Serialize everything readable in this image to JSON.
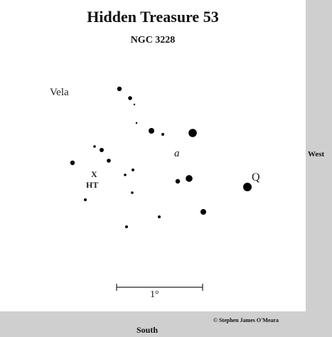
{
  "chart": {
    "title": "Hidden Treasure 53",
    "subtitle": "NGC 3228",
    "constellation": "Vela",
    "star_a_label": "a",
    "star_q_label": "Q",
    "target_marker": "X",
    "target_label": "HT",
    "scale_label": "1°"
  },
  "directions": {
    "west": "West",
    "south": "South"
  },
  "credit": {
    "copyright": "© Stephen James O'Meara"
  },
  "colors": {
    "star": "#000000",
    "panel": "#ffffff",
    "background": "#cfcfcf"
  }
}
